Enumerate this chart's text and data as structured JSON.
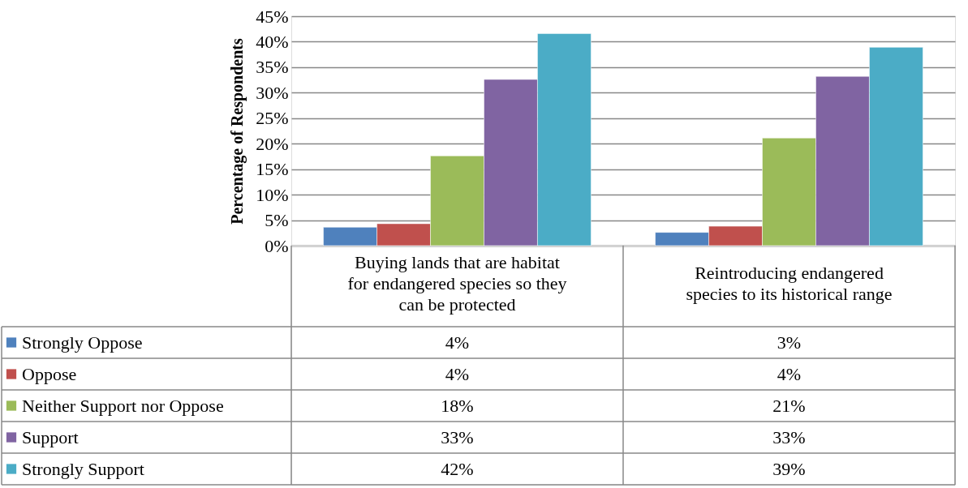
{
  "chart_data": {
    "type": "bar",
    "ylabel": "Percentage of Respondents",
    "categories": [
      "Buying lands that are habitat for endangered species so they can be protected",
      "Reintroducing endangered species to its historical range"
    ],
    "series": [
      {
        "name": "Strongly Oppose",
        "color": "#4f81bd",
        "values": [
          3.6,
          2.6
        ],
        "value_labels": [
          "4%",
          "3%"
        ]
      },
      {
        "name": "Oppose",
        "color": "#c0504d",
        "values": [
          4.3,
          3.8
        ],
        "value_labels": [
          "4%",
          "4%"
        ]
      },
      {
        "name": "Neither Support nor Oppose",
        "color": "#9bbb59",
        "values": [
          17.6,
          21.1
        ],
        "value_labels": [
          "18%",
          "21%"
        ]
      },
      {
        "name": "Support",
        "color": "#8064a2",
        "values": [
          32.6,
          33.2
        ],
        "value_labels": [
          "33%",
          "33%"
        ]
      },
      {
        "name": "Strongly Support",
        "color": "#4bacc6",
        "values": [
          41.6,
          38.9
        ],
        "value_labels": [
          "42%",
          "39%"
        ]
      }
    ],
    "ylim": [
      0,
      45
    ],
    "yticks": [
      {
        "value": 0,
        "label": "0%"
      },
      {
        "value": 5,
        "label": "5%"
      },
      {
        "value": 10,
        "label": "10%"
      },
      {
        "value": 15,
        "label": "15%"
      },
      {
        "value": 20,
        "label": "20%"
      },
      {
        "value": 25,
        "label": "25%"
      },
      {
        "value": 30,
        "label": "30%"
      },
      {
        "value": 35,
        "label": "35%"
      },
      {
        "value": 40,
        "label": "40%"
      },
      {
        "value": 45,
        "label": "45%"
      }
    ],
    "grid": "y",
    "legend": "bottom"
  }
}
